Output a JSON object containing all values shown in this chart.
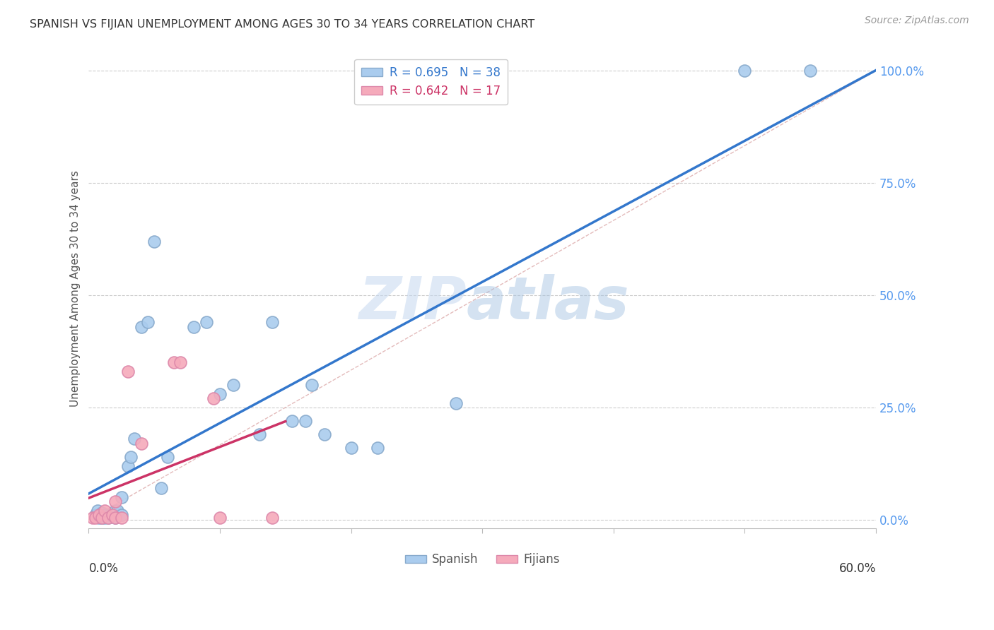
{
  "title": "SPANISH VS FIJIAN UNEMPLOYMENT AMONG AGES 30 TO 34 YEARS CORRELATION CHART",
  "source": "Source: ZipAtlas.com",
  "ylabel": "Unemployment Among Ages 30 to 34 years",
  "legend_entries": [
    {
      "label": "R = 0.695   N = 38"
    },
    {
      "label": "R = 0.642   N = 17"
    }
  ],
  "legend_bottom": [
    "Spanish",
    "Fijians"
  ],
  "xlim": [
    0.0,
    0.6
  ],
  "ylim": [
    -0.02,
    1.05
  ],
  "yticks": [
    0.0,
    0.25,
    0.5,
    0.75,
    1.0
  ],
  "ytick_labels": [
    "0.0%",
    "25.0%",
    "50.0%",
    "75.0%",
    "100.0%"
  ],
  "xticks": [
    0.0,
    0.1,
    0.2,
    0.3,
    0.4,
    0.5,
    0.6
  ],
  "spanish_x": [
    0.005,
    0.007,
    0.008,
    0.01,
    0.01,
    0.012,
    0.013,
    0.015,
    0.016,
    0.018,
    0.02,
    0.02,
    0.022,
    0.025,
    0.025,
    0.03,
    0.032,
    0.035,
    0.04,
    0.045,
    0.05,
    0.055,
    0.06,
    0.08,
    0.09,
    0.1,
    0.11,
    0.13,
    0.14,
    0.155,
    0.165,
    0.17,
    0.18,
    0.2,
    0.22,
    0.28,
    0.5,
    0.55
  ],
  "spanish_y": [
    0.01,
    0.02,
    0.005,
    0.005,
    0.015,
    0.005,
    0.01,
    0.005,
    0.01,
    0.01,
    0.005,
    0.02,
    0.02,
    0.01,
    0.05,
    0.12,
    0.14,
    0.18,
    0.43,
    0.44,
    0.62,
    0.07,
    0.14,
    0.43,
    0.44,
    0.28,
    0.3,
    0.19,
    0.44,
    0.22,
    0.22,
    0.3,
    0.19,
    0.16,
    0.16,
    0.26,
    1.0,
    1.0
  ],
  "fijian_x": [
    0.003,
    0.005,
    0.008,
    0.01,
    0.012,
    0.015,
    0.018,
    0.02,
    0.02,
    0.025,
    0.03,
    0.04,
    0.065,
    0.07,
    0.095,
    0.1,
    0.14
  ],
  "fijian_y": [
    0.005,
    0.005,
    0.01,
    0.005,
    0.02,
    0.005,
    0.01,
    0.005,
    0.04,
    0.005,
    0.33,
    0.17,
    0.35,
    0.35,
    0.27,
    0.005,
    0.005
  ],
  "spanish_line_color": "#3377cc",
  "fijian_line_color": "#cc3366",
  "diag_line_color": "#ddaaaa",
  "spanish_scatter_facecolor": "#aaccee",
  "spanish_scatter_edgecolor": "#88aacc",
  "fijian_scatter_facecolor": "#f5aabb",
  "fijian_scatter_edgecolor": "#dd88aa",
  "watermark_zip": "ZIP",
  "watermark_atlas": "atlas",
  "background_color": "#ffffff",
  "grid_color": "#cccccc"
}
